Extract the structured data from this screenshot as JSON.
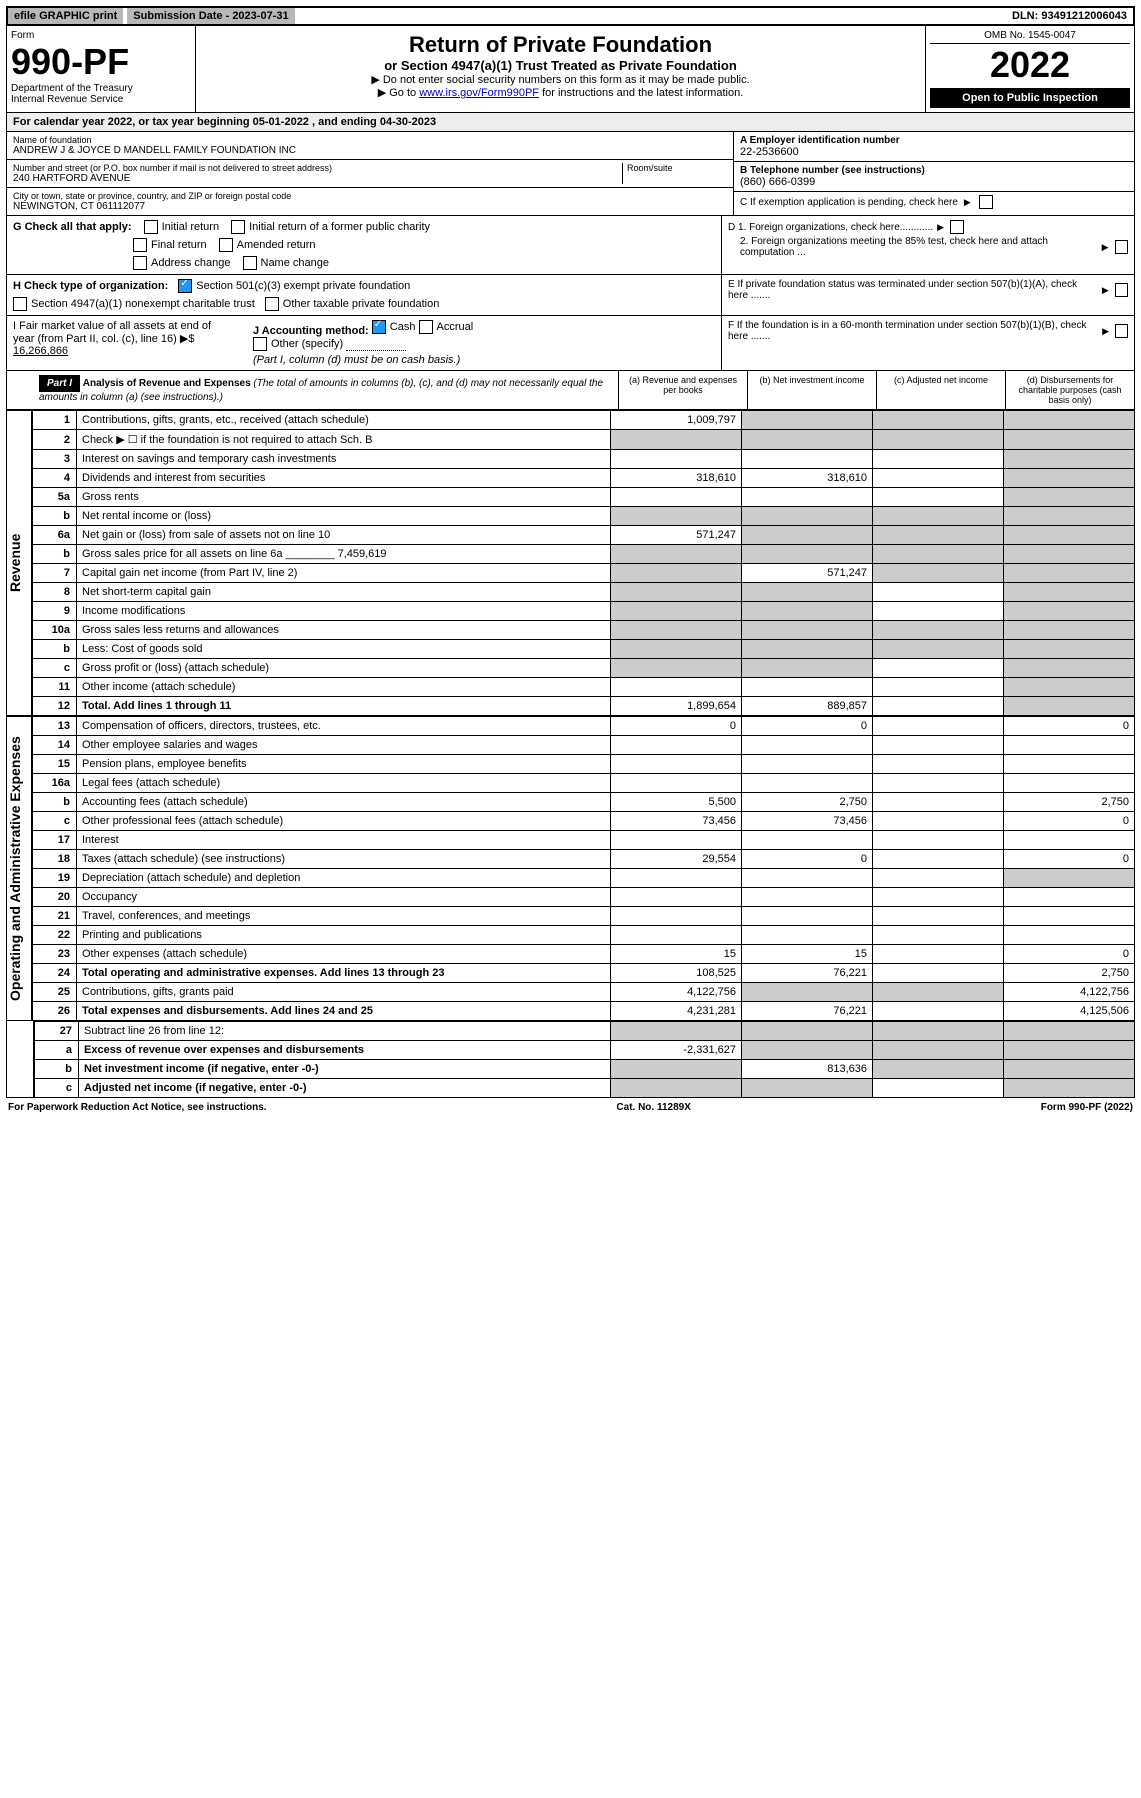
{
  "topbar": {
    "efile": "efile GRAPHIC print",
    "submission_label": "Submission Date - 2023-07-31",
    "dln": "DLN: 93491212006043"
  },
  "header": {
    "form_label": "Form",
    "form_number": "990-PF",
    "dept": "Department of the Treasury",
    "irs": "Internal Revenue Service",
    "title": "Return of Private Foundation",
    "subtitle": "or Section 4947(a)(1) Trust Treated as Private Foundation",
    "instr1": "▶ Do not enter social security numbers on this form as it may be made public.",
    "instr2_pre": "▶ Go to ",
    "instr2_link": "www.irs.gov/Form990PF",
    "instr2_post": " for instructions and the latest information.",
    "omb": "OMB No. 1545-0047",
    "year": "2022",
    "open_public": "Open to Public Inspection"
  },
  "calyear": {
    "text_pre": "For calendar year 2022, or tax year beginning ",
    "begin": "05-01-2022",
    "mid": " , and ending ",
    "end": "04-30-2023"
  },
  "entity": {
    "name_label": "Name of foundation",
    "name": "ANDREW J & JOYCE D MANDELL FAMILY FOUNDATION INC",
    "addr_label": "Number and street (or P.O. box number if mail is not delivered to street address)",
    "addr": "240 HARTFORD AVENUE",
    "room_label": "Room/suite",
    "city_label": "City or town, state or province, country, and ZIP or foreign postal code",
    "city": "NEWINGTON, CT  061112077",
    "ein_label": "A Employer identification number",
    "ein": "22-2536600",
    "phone_label": "B Telephone number (see instructions)",
    "phone": "(860) 666-0399",
    "c_label": "C If exemption application is pending, check here",
    "d1_label": "D 1. Foreign organizations, check here............",
    "d2_label": "2. Foreign organizations meeting the 85% test, check here and attach computation ...",
    "e_label": "E If private foundation status was terminated under section 507(b)(1)(A), check here .......",
    "f_label": "F If the foundation is in a 60-month termination under section 507(b)(1)(B), check here .......",
    "g_label": "G Check all that apply:",
    "g_opts": [
      "Initial return",
      "Initial return of a former public charity",
      "Final return",
      "Amended return",
      "Address change",
      "Name change"
    ],
    "h_label": "H Check type of organization:",
    "h_opts": [
      "Section 501(c)(3) exempt private foundation",
      "Section 4947(a)(1) nonexempt charitable trust",
      "Other taxable private foundation"
    ],
    "i_label": "I Fair market value of all assets at end of year (from Part II, col. (c), line 16)",
    "i_value": "16,266,866",
    "j_label": "J Accounting method:",
    "j_opts": [
      "Cash",
      "Accrual",
      "Other (specify)"
    ],
    "j_note": "(Part I, column (d) must be on cash basis.)"
  },
  "part1": {
    "label": "Part I",
    "title": "Analysis of Revenue and Expenses",
    "title_note": "(The total of amounts in columns (b), (c), and (d) may not necessarily equal the amounts in column (a) (see instructions).)",
    "col_a": "(a) Revenue and expenses per books",
    "col_b": "(b) Net investment income",
    "col_c": "(c) Adjusted net income",
    "col_d": "(d) Disbursements for charitable purposes (cash basis only)"
  },
  "sidebars": {
    "revenue": "Revenue",
    "expenses": "Operating and Administrative Expenses"
  },
  "lines": [
    {
      "n": "1",
      "label": "Contributions, gifts, grants, etc., received (attach schedule)",
      "a": "1,009,797",
      "b": "",
      "c": "",
      "d": "",
      "shade": [
        "b",
        "c",
        "d"
      ]
    },
    {
      "n": "2",
      "label": "Check ▶ ☐ if the foundation is not required to attach Sch. B",
      "a": "",
      "b": "",
      "c": "",
      "d": "",
      "shade": [
        "a",
        "b",
        "c",
        "d"
      ]
    },
    {
      "n": "3",
      "label": "Interest on savings and temporary cash investments",
      "a": "",
      "b": "",
      "c": "",
      "d": "",
      "shade": [
        "d"
      ]
    },
    {
      "n": "4",
      "label": "Dividends and interest from securities",
      "a": "318,610",
      "b": "318,610",
      "c": "",
      "d": "",
      "shade": [
        "d"
      ]
    },
    {
      "n": "5a",
      "label": "Gross rents",
      "a": "",
      "b": "",
      "c": "",
      "d": "",
      "shade": [
        "d"
      ]
    },
    {
      "n": "b",
      "label": "Net rental income or (loss)",
      "a": "",
      "b": "",
      "c": "",
      "d": "",
      "shade": [
        "a",
        "b",
        "c",
        "d"
      ]
    },
    {
      "n": "6a",
      "label": "Net gain or (loss) from sale of assets not on line 10",
      "a": "571,247",
      "b": "",
      "c": "",
      "d": "",
      "shade": [
        "b",
        "c",
        "d"
      ]
    },
    {
      "n": "b",
      "label": "Gross sales price for all assets on line 6a ________ 7,459,619",
      "a": "",
      "b": "",
      "c": "",
      "d": "",
      "shade": [
        "a",
        "b",
        "c",
        "d"
      ]
    },
    {
      "n": "7",
      "label": "Capital gain net income (from Part IV, line 2)",
      "a": "",
      "b": "571,247",
      "c": "",
      "d": "",
      "shade": [
        "a",
        "c",
        "d"
      ]
    },
    {
      "n": "8",
      "label": "Net short-term capital gain",
      "a": "",
      "b": "",
      "c": "",
      "d": "",
      "shade": [
        "a",
        "b",
        "d"
      ]
    },
    {
      "n": "9",
      "label": "Income modifications",
      "a": "",
      "b": "",
      "c": "",
      "d": "",
      "shade": [
        "a",
        "b",
        "d"
      ]
    },
    {
      "n": "10a",
      "label": "Gross sales less returns and allowances",
      "a": "",
      "b": "",
      "c": "",
      "d": "",
      "shade": [
        "a",
        "b",
        "c",
        "d"
      ]
    },
    {
      "n": "b",
      "label": "Less: Cost of goods sold",
      "a": "",
      "b": "",
      "c": "",
      "d": "",
      "shade": [
        "a",
        "b",
        "c",
        "d"
      ]
    },
    {
      "n": "c",
      "label": "Gross profit or (loss) (attach schedule)",
      "a": "",
      "b": "",
      "c": "",
      "d": "",
      "shade": [
        "a",
        "b",
        "d"
      ]
    },
    {
      "n": "11",
      "label": "Other income (attach schedule)",
      "a": "",
      "b": "",
      "c": "",
      "d": "",
      "shade": [
        "d"
      ]
    },
    {
      "n": "12",
      "label": "Total. Add lines 1 through 11",
      "a": "1,899,654",
      "b": "889,857",
      "c": "",
      "d": "",
      "shade": [
        "d"
      ],
      "bold": true
    }
  ],
  "exp_lines": [
    {
      "n": "13",
      "label": "Compensation of officers, directors, trustees, etc.",
      "a": "0",
      "b": "0",
      "c": "",
      "d": "0"
    },
    {
      "n": "14",
      "label": "Other employee salaries and wages",
      "a": "",
      "b": "",
      "c": "",
      "d": ""
    },
    {
      "n": "15",
      "label": "Pension plans, employee benefits",
      "a": "",
      "b": "",
      "c": "",
      "d": ""
    },
    {
      "n": "16a",
      "label": "Legal fees (attach schedule)",
      "a": "",
      "b": "",
      "c": "",
      "d": ""
    },
    {
      "n": "b",
      "label": "Accounting fees (attach schedule)",
      "a": "5,500",
      "b": "2,750",
      "c": "",
      "d": "2,750"
    },
    {
      "n": "c",
      "label": "Other professional fees (attach schedule)",
      "a": "73,456",
      "b": "73,456",
      "c": "",
      "d": "0"
    },
    {
      "n": "17",
      "label": "Interest",
      "a": "",
      "b": "",
      "c": "",
      "d": ""
    },
    {
      "n": "18",
      "label": "Taxes (attach schedule) (see instructions)",
      "a": "29,554",
      "b": "0",
      "c": "",
      "d": "0"
    },
    {
      "n": "19",
      "label": "Depreciation (attach schedule) and depletion",
      "a": "",
      "b": "",
      "c": "",
      "d": "",
      "shade": [
        "d"
      ]
    },
    {
      "n": "20",
      "label": "Occupancy",
      "a": "",
      "b": "",
      "c": "",
      "d": ""
    },
    {
      "n": "21",
      "label": "Travel, conferences, and meetings",
      "a": "",
      "b": "",
      "c": "",
      "d": ""
    },
    {
      "n": "22",
      "label": "Printing and publications",
      "a": "",
      "b": "",
      "c": "",
      "d": ""
    },
    {
      "n": "23",
      "label": "Other expenses (attach schedule)",
      "a": "15",
      "b": "15",
      "c": "",
      "d": "0"
    },
    {
      "n": "24",
      "label": "Total operating and administrative expenses. Add lines 13 through 23",
      "a": "108,525",
      "b": "76,221",
      "c": "",
      "d": "2,750",
      "bold": true
    },
    {
      "n": "25",
      "label": "Contributions, gifts, grants paid",
      "a": "4,122,756",
      "b": "",
      "c": "",
      "d": "4,122,756",
      "shade": [
        "b",
        "c"
      ]
    },
    {
      "n": "26",
      "label": "Total expenses and disbursements. Add lines 24 and 25",
      "a": "4,231,281",
      "b": "76,221",
      "c": "",
      "d": "4,125,506",
      "bold": true
    }
  ],
  "bottom_lines": [
    {
      "n": "27",
      "label": "Subtract line 26 from line 12:",
      "a": "",
      "b": "",
      "c": "",
      "d": "",
      "shade": [
        "a",
        "b",
        "c",
        "d"
      ]
    },
    {
      "n": "a",
      "label": "Excess of revenue over expenses and disbursements",
      "a": "-2,331,627",
      "b": "",
      "c": "",
      "d": "",
      "shade": [
        "b",
        "c",
        "d"
      ],
      "bold": true
    },
    {
      "n": "b",
      "label": "Net investment income (if negative, enter -0-)",
      "a": "",
      "b": "813,636",
      "c": "",
      "d": "",
      "shade": [
        "a",
        "c",
        "d"
      ],
      "bold": true
    },
    {
      "n": "c",
      "label": "Adjusted net income (if negative, enter -0-)",
      "a": "",
      "b": "",
      "c": "",
      "d": "",
      "shade": [
        "a",
        "b",
        "d"
      ],
      "bold": true
    }
  ],
  "footer": {
    "left": "For Paperwork Reduction Act Notice, see instructions.",
    "center": "Cat. No. 11289X",
    "right": "Form 990-PF (2022)"
  }
}
